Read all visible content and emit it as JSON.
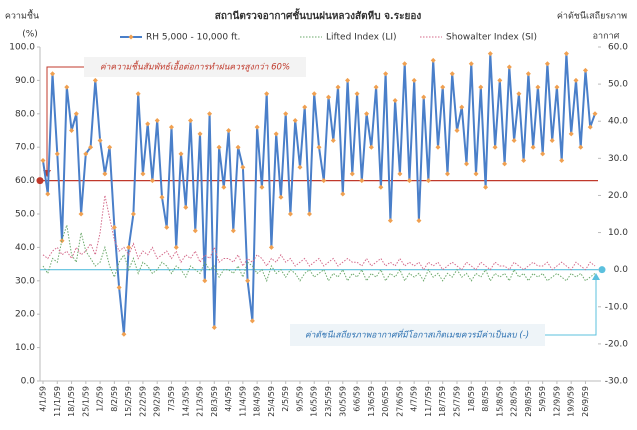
{
  "chart_data": {
    "type": "line",
    "title": "สถานีตรวจอากาศชั้นบนฝนหลวงสัตหีบ จ.ระยอง",
    "y_label": [
      "ความชื้น",
      "(%)"
    ],
    "y2_label": [
      "ค่าดัชนีเสถียรภาพ",
      "อากาศ"
    ],
    "annotations": [
      "ค่าความชื้นสัมพัทธ์เอื้อต่อการทำฝนควรสูงกว่า 60%",
      "ค่าดัชนีเสถียรภาพอากาศที่มีโอกาสเกิดเมฆควรมีค่าเป็นลบ (-)"
    ],
    "reference_lines": [
      {
        "value": 60,
        "axis": "y",
        "color": "#c0392b"
      },
      {
        "value": 0,
        "axis": "y2",
        "color": "#5bc0de"
      }
    ],
    "categories": [
      "4/1/59",
      null,
      null,
      "11/1/59",
      null,
      null,
      "18/1/59",
      null,
      null,
      "25/1/59",
      null,
      null,
      "1/2/59",
      null,
      null,
      "8/2/59",
      null,
      null,
      "15/2/59",
      null,
      null,
      "22/2/59",
      null,
      null,
      "29/2/59",
      null,
      null,
      "7/3/59",
      null,
      null,
      "14/3/59",
      null,
      null,
      "21/3/59",
      null,
      null,
      "28/3/59",
      null,
      null,
      "4/4/59",
      null,
      null,
      "11/4/59",
      null,
      null,
      "18/4/59",
      null,
      null,
      "25/4/59",
      null,
      null,
      "2/5/59",
      null,
      null,
      "9/5/59",
      null,
      null,
      "16/5/59",
      null,
      null,
      "23/5/59",
      null,
      null,
      "30/5/59",
      null,
      null,
      "6/6/59",
      null,
      null,
      "13/6/59",
      null,
      null,
      "20/6/59",
      null,
      null,
      "27/6/59",
      null,
      null,
      "4/7/59",
      null,
      null,
      "11/7/59",
      null,
      null,
      "18/7/59",
      null,
      null,
      "25/7/59",
      null,
      null,
      "1/8/59",
      null,
      null,
      "8/8/59",
      null,
      null,
      "15/8/59",
      null,
      null,
      "22/8/59",
      null,
      null,
      "29/8/59",
      null,
      null,
      "5/9/59",
      null,
      null,
      "12/9/59",
      null,
      null,
      "19/9/59",
      null,
      null,
      "26/9/59",
      null,
      null
    ],
    "series": [
      {
        "name": "RH 5,000 - 10,000 ft.",
        "color": "#4a7fc9",
        "marker_color": "#f0a050",
        "axis": "y",
        "values": [
          66,
          56,
          92,
          68,
          42,
          88,
          75,
          80,
          50,
          68,
          70,
          90,
          72,
          62,
          70,
          46,
          28,
          14,
          40,
          50,
          86,
          62,
          77,
          60,
          78,
          55,
          46,
          76,
          40,
          68,
          52,
          78,
          45,
          74,
          30,
          80,
          16,
          70,
          58,
          75,
          45,
          70,
          64,
          30,
          18,
          76,
          58,
          86,
          40,
          74,
          55,
          80,
          50,
          78,
          64,
          82,
          50,
          86,
          70,
          60,
          85,
          72,
          88,
          56,
          90,
          62,
          86,
          60,
          80,
          70,
          88,
          58,
          92,
          48,
          84,
          62,
          95,
          60,
          90,
          48,
          85,
          60,
          96,
          70,
          88,
          62,
          92,
          75,
          82,
          65,
          95,
          62,
          88,
          58,
          98,
          70,
          90,
          65,
          94,
          72,
          86,
          66,
          92,
          70,
          88,
          68,
          95,
          72,
          88,
          66,
          98,
          74,
          90,
          70,
          93,
          76,
          80
        ]
      },
      {
        "name": "Lifted Index (LI)",
        "color": "#6aa86a",
        "axis": "y2",
        "values": [
          1,
          -1,
          3,
          2,
          8,
          12,
          4,
          2,
          10,
          5,
          3,
          1,
          2,
          6,
          1,
          -2,
          2,
          4,
          0,
          3,
          -1,
          2,
          1,
          -1,
          0,
          2,
          1,
          -1,
          1,
          0,
          -2,
          1,
          0,
          -1,
          2,
          0,
          1,
          -2,
          0,
          0,
          -1,
          1,
          -2,
          2,
          1,
          -1,
          0,
          -3,
          1,
          -1,
          0,
          -2,
          0,
          -1,
          -3,
          -1,
          0,
          -2,
          -1,
          0,
          -3,
          -1,
          -2,
          0,
          -3,
          -1,
          -2,
          0,
          -3,
          -1,
          -2,
          0,
          -3,
          -1,
          -2,
          0,
          -3,
          -1,
          -2,
          -1,
          -3,
          0,
          -2,
          -1,
          -3,
          -1,
          -2,
          0,
          -2,
          -1,
          -3,
          -1,
          -2,
          0,
          -3,
          -1,
          -2,
          -1,
          -3,
          0,
          -2,
          -1,
          -3,
          -1,
          -2,
          -1,
          -3,
          -2,
          -1,
          -2,
          -3,
          -1,
          -2,
          -1,
          -3,
          -2,
          -1
        ]
      },
      {
        "name": "Showalter Index (SI)",
        "color": "#d46a8a",
        "axis": "y2",
        "values": [
          4,
          3,
          5,
          6,
          4,
          5,
          3,
          6,
          4,
          5,
          7,
          4,
          10,
          20,
          14,
          8,
          5,
          6,
          4,
          7,
          3,
          5,
          4,
          6,
          3,
          4,
          5,
          3,
          5,
          2,
          4,
          3,
          5,
          2,
          4,
          3,
          6,
          2,
          3,
          3,
          2,
          4,
          1,
          3,
          2,
          4,
          3,
          1,
          3,
          2,
          4,
          2,
          3,
          1,
          2,
          3,
          1,
          2,
          3,
          1,
          2,
          3,
          1,
          2,
          3,
          2,
          2,
          1,
          3,
          1,
          2,
          3,
          1,
          2,
          1,
          3,
          1,
          2,
          1,
          2,
          0,
          2,
          1,
          2,
          0,
          1,
          2,
          1,
          0,
          2,
          1,
          0,
          2,
          1,
          0,
          2,
          1,
          1,
          0,
          2,
          1,
          0,
          1,
          2,
          1,
          1,
          2,
          0,
          1,
          2,
          1,
          0,
          2,
          1,
          0,
          2,
          1
        ]
      }
    ],
    "ylim": [
      0,
      100
    ],
    "yticks": [
      {
        "value": 0,
        "label": "0.0"
      },
      {
        "value": 10,
        "label": "10.0"
      },
      {
        "value": 20,
        "label": "20.0"
      },
      {
        "value": 30,
        "label": "30.0"
      },
      {
        "value": 40,
        "label": "40.0"
      },
      {
        "value": 50,
        "label": "50.0"
      },
      {
        "value": 60,
        "label": "60.0"
      },
      {
        "value": 70,
        "label": "70.0"
      },
      {
        "value": 80,
        "label": "80.0"
      },
      {
        "value": 90,
        "label": "90.0"
      },
      {
        "value": 100,
        "label": "100.0"
      }
    ],
    "y2lim": [
      -30,
      60
    ],
    "y2ticks": [
      {
        "value": -30,
        "label": "-30.0"
      },
      {
        "value": -20,
        "label": "-20.0"
      },
      {
        "value": -10,
        "label": "-10.0"
      },
      {
        "value": 0,
        "label": "0.0"
      },
      {
        "value": 10,
        "label": "10.0"
      },
      {
        "value": 20,
        "label": "20.0"
      },
      {
        "value": 30,
        "label": "30.0"
      },
      {
        "value": 40,
        "label": "40.0"
      },
      {
        "value": 50,
        "label": "50.0"
      },
      {
        "value": 60,
        "label": "60.0"
      }
    ],
    "legend": "top"
  }
}
